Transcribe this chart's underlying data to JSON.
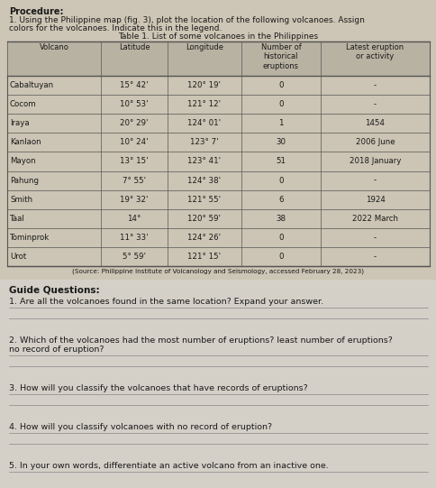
{
  "title_procedure": "Procedure:",
  "instruction_line1": "1. Using the Philippine map (fig. 3), plot the location of the following volcanoes. Assign",
  "instruction_line2": "colors for the volcanoes. Indicate this in the legend.",
  "table_title": "Table 1. List of some volcanoes in the Philippines",
  "headers": [
    "Volcano",
    "Latitude",
    "Longitude",
    "Number of\nhistorical\neruptions",
    "Latest eruption\nor activity"
  ],
  "rows": [
    [
      "Cabaltuyan",
      "15° 42'",
      "120° 19'",
      "0",
      "-"
    ],
    [
      "Cocom",
      "10° 53'",
      "121° 12'",
      "0",
      "-"
    ],
    [
      "Iraya",
      "20° 29'",
      "124° 01'",
      "1",
      "1454"
    ],
    [
      "Kanlaon",
      "10° 24'",
      "123° 7'",
      "30",
      "2006 June"
    ],
    [
      "Mayon",
      "13° 15'",
      "123° 41'",
      "51",
      "2018 January"
    ],
    [
      "Pahung",
      "7° 55'",
      "124° 38'",
      "0",
      "-"
    ],
    [
      "Smith",
      "19° 32'",
      "121° 55'",
      "6",
      "1924"
    ],
    [
      "Taal",
      "14°",
      "120° 59'",
      "38",
      "2022 March"
    ],
    [
      "Tominprok",
      "11° 33'",
      "124° 26'",
      "0",
      "-"
    ],
    [
      "Urot",
      "5° 59'",
      "121° 15'",
      "0",
      "-"
    ]
  ],
  "source": "(Source: Philippine Institute of Volcanology and Seismology, accessed February 28, 2023)",
  "guide_title": "Guide Questions:",
  "q1": "1. Are all the volcanoes found in the same location? Expand your answer.",
  "q2a": "2. Which of the volcanoes had the most number of eruptions? least number of eruptions?",
  "q2b": "no record of eruption?",
  "q3": "3. How will you classify the volcanoes that have records of eruptions?",
  "q4": "4. How will you classify volcanoes with no record of eruption?",
  "q5": "5. In your own words, differentiate an active volcano from an inactive one.",
  "top_bg": "#c8c0b0",
  "paper_bg": "#d8d0c4",
  "lower_bg": "#d0ccc0",
  "table_cell_bg": "#ccc4b4",
  "table_header_bg": "#b8b0a0",
  "border_color": "#555555",
  "text_color": "#1a1a1a",
  "line_color": "#888888"
}
